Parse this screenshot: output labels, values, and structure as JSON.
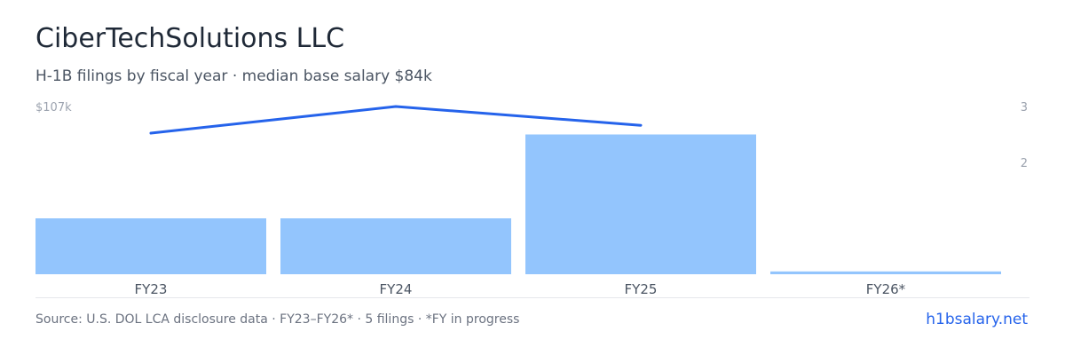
{
  "header": {
    "title": "CiberTechSolutions LLC",
    "subtitle": "H-1B filings by fiscal year · median base salary $84k"
  },
  "footer": {
    "source": "Source: U.S. DOL LCA disclosure data · FY23–FY26* · 5 filings · *FY in progress",
    "brand": "h1bsalary.net"
  },
  "colors": {
    "bar": "#93c5fd",
    "line": "#2563eb",
    "axis_text": "#9ca3af",
    "baseline": "#e5e7eb"
  },
  "chart_data": {
    "type": "bar",
    "categories": [
      "FY23",
      "FY24",
      "FY25",
      "FY26*"
    ],
    "series": [
      {
        "type": "bar",
        "axis": "right",
        "values": [
          1,
          1,
          2.5,
          0.05
        ]
      },
      {
        "type": "line",
        "axis": "left",
        "values": [
          90000,
          107000,
          95000,
          null
        ]
      }
    ],
    "left_axis": {
      "tick_labels": [
        "$107k"
      ],
      "ylim": [
        0,
        107000
      ]
    },
    "right_axis": {
      "tick_labels": [
        "3",
        "2"
      ],
      "ticks": [
        3,
        2
      ],
      "ylim": [
        0,
        3
      ]
    },
    "grid": false
  }
}
